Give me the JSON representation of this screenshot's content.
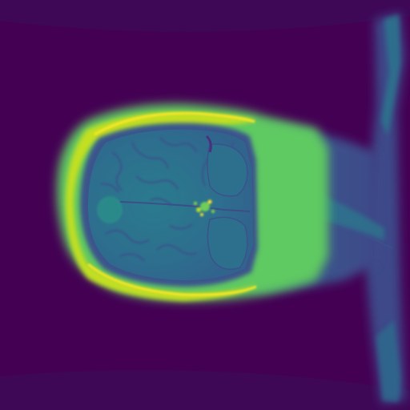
{
  "image": {
    "kind": "mri-slice",
    "view": "axial",
    "orientation": "anterior-left",
    "colormap": "viridis",
    "colors": {
      "background": "#440154",
      "field_edge": "#3b0b5e",
      "muscle": "#31688e",
      "brain_white_matter": "#2c728e",
      "brain_gray_matter": "#26828e",
      "csf": "#1f988b",
      "skull_marrow": "#6ece58",
      "scalp_fat": "#b5de2b",
      "vessel_bright": "#fde725",
      "sulcus_dark": "#3b528b"
    },
    "labels": []
  }
}
